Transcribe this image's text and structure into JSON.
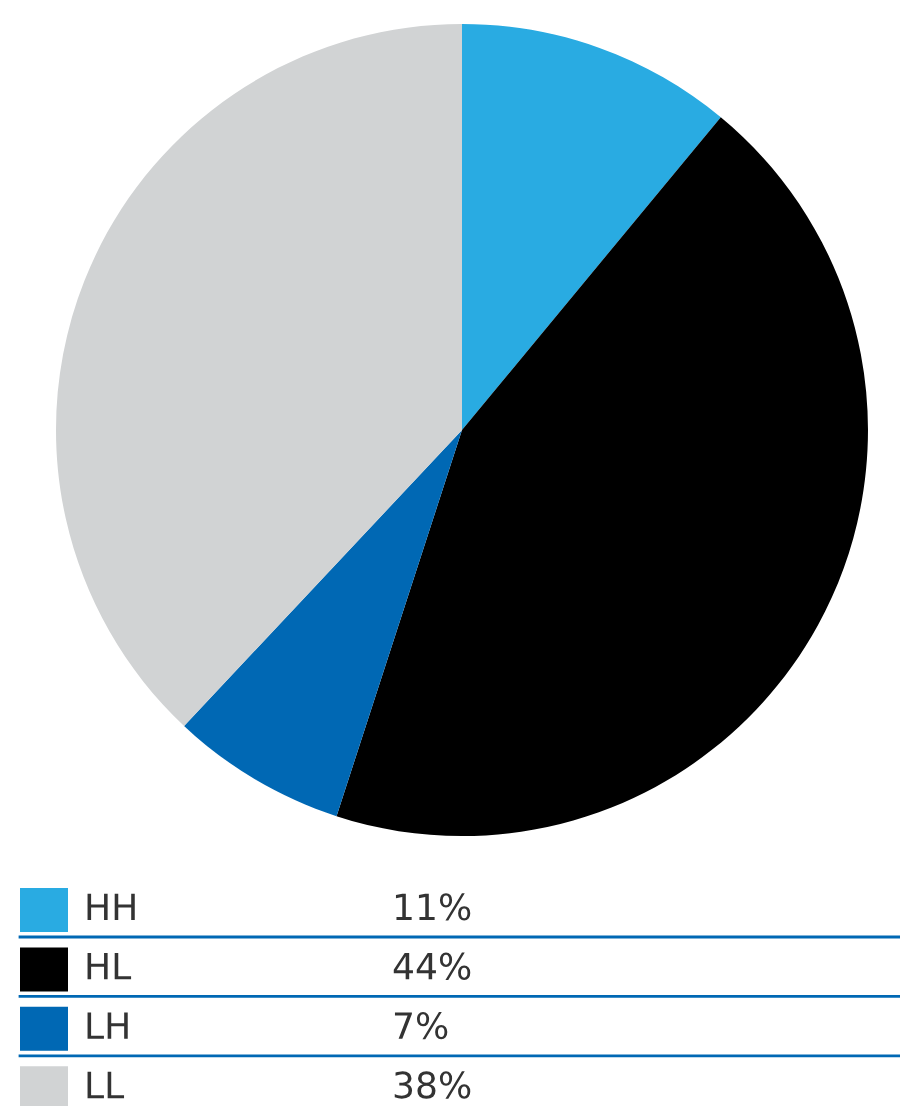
{
  "chart_data": {
    "type": "pie",
    "categories": [
      "HH",
      "HL",
      "LH",
      "LL"
    ],
    "values": [
      11,
      44,
      7,
      38
    ],
    "colors": [
      "#29abe2",
      "#000000",
      "#0068b4",
      "#d1d3d4"
    ],
    "value_labels": [
      "11%",
      "44%",
      "7%",
      "38%"
    ],
    "legend": "bottom"
  }
}
